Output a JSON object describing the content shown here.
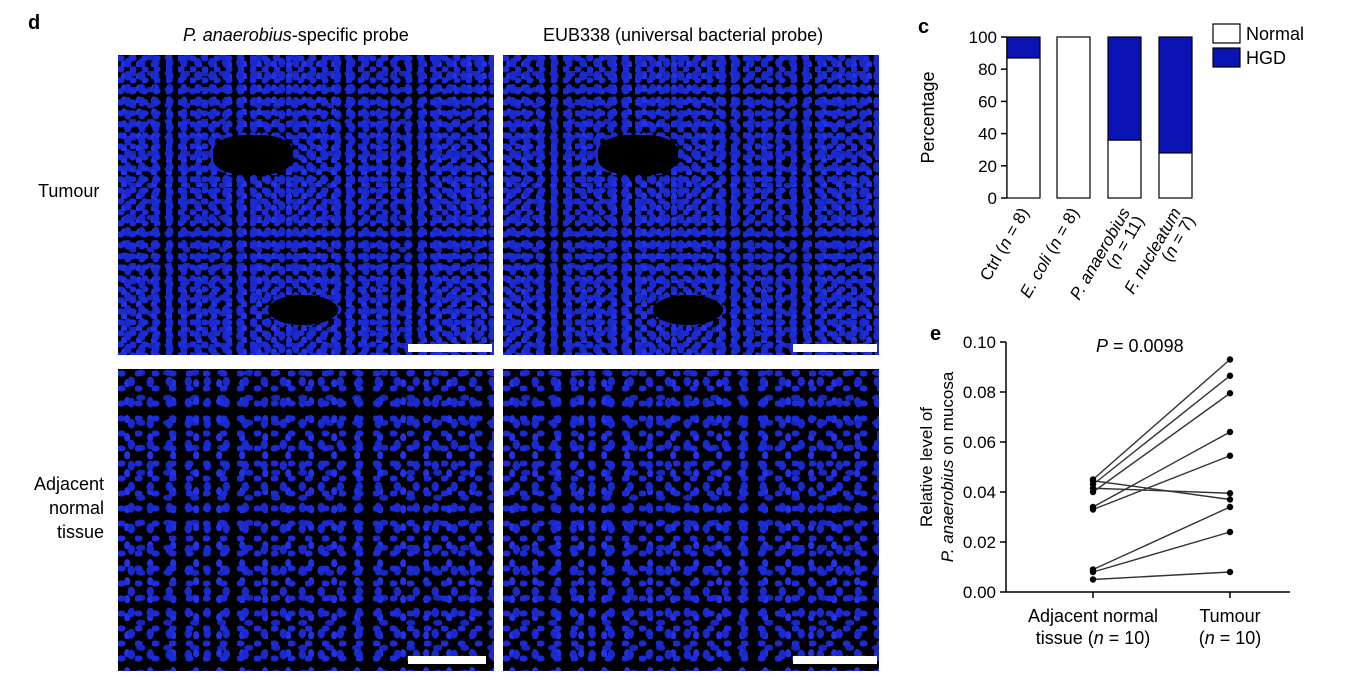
{
  "panel_d": {
    "letter": "d",
    "col1_title_italic": "P. anaerobius",
    "col1_title_rest": "-specific probe",
    "col2_title": "EUB338 (universal bacterial probe)",
    "row1_label": "Tumour",
    "row2_label_lines": [
      "Adjacent",
      "normal",
      "tissue"
    ]
  },
  "chart_data": [
    {
      "panel": "c",
      "type": "bar",
      "stacked": true,
      "categories": [
        "Ctrl (n = 8)",
        "E. coli (n = 8)",
        "P. anaerobius (n = 11)",
        "F. nucleatum (n = 7)"
      ],
      "series": [
        {
          "name": "Normal",
          "color": "#ffffff",
          "values": [
            87,
            100,
            36,
            28
          ]
        },
        {
          "name": "HGD",
          "color": "#0a14b4",
          "values": [
            13,
            0,
            64,
            72
          ]
        }
      ],
      "ylabel": "Percentage",
      "ylim": [
        0,
        100
      ],
      "yticks": [
        0,
        20,
        40,
        60,
        80,
        100
      ],
      "legend_position": "top-right"
    },
    {
      "panel": "e",
      "type": "line",
      "subtype": "paired",
      "categories": [
        "Adjacent normal tissue (n = 10)",
        "Tumour (n = 10)"
      ],
      "x_tick_lines": [
        [
          "Adjacent normal",
          "tissue (n = 10)"
        ],
        [
          "Tumour",
          "(n = 10)"
        ]
      ],
      "pairs": [
        [
          0.045,
          0.093
        ],
        [
          0.043,
          0.0865
        ],
        [
          0.04,
          0.0795
        ],
        [
          0.034,
          0.064
        ],
        [
          0.033,
          0.0545
        ],
        [
          0.0415,
          0.0395
        ],
        [
          0.0445,
          0.037
        ],
        [
          0.009,
          0.034
        ],
        [
          0.008,
          0.024
        ],
        [
          0.005,
          0.008
        ]
      ],
      "ylabel_lines": [
        "Relative level of",
        "P. anaerobius on mucosa"
      ],
      "ylim": [
        0,
        0.1
      ],
      "yticks": [
        "0.00",
        "0.02",
        "0.04",
        "0.06",
        "0.08",
        "0.10"
      ],
      "annotation": "P = 0.0098",
      "line_color": "#333333",
      "point_color": "#000000"
    }
  ]
}
